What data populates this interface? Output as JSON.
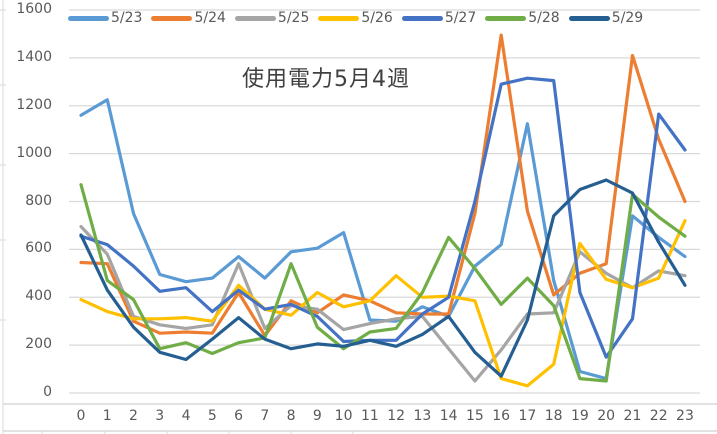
{
  "chart_data": {
    "type": "line",
    "title": "使用電力5月4週",
    "xlabel": "",
    "ylabel": "",
    "ylim": [
      0,
      1600
    ],
    "yticks": [
      0,
      200,
      400,
      600,
      800,
      1000,
      1200,
      1400,
      1600
    ],
    "grid": true,
    "legend_position": "top",
    "x": [
      0,
      1,
      2,
      3,
      4,
      5,
      6,
      7,
      8,
      9,
      10,
      11,
      12,
      13,
      14,
      15,
      16,
      17,
      18,
      19,
      20,
      21,
      22,
      23
    ],
    "series": [
      {
        "name": "5/23",
        "color": "#5B9BD5",
        "values": [
          1160,
          1225,
          750,
          495,
          465,
          480,
          570,
          480,
          590,
          605,
          670,
          305,
          300,
          360,
          320,
          530,
          620,
          1125,
          470,
          90,
          60,
          740,
          650,
          570
        ]
      },
      {
        "name": "5/24",
        "color": "#ED7D31",
        "values": [
          545,
          540,
          300,
          250,
          255,
          250,
          420,
          240,
          385,
          335,
          410,
          385,
          335,
          330,
          330,
          750,
          1495,
          760,
          410,
          500,
          540,
          1410,
          1060,
          800
        ]
      },
      {
        "name": "5/25",
        "color": "#A5A5A5",
        "values": [
          695,
          580,
          320,
          285,
          270,
          285,
          540,
          270,
          365,
          350,
          265,
          290,
          310,
          320,
          185,
          50,
          180,
          330,
          335,
          590,
          500,
          440,
          510,
          490
        ]
      },
      {
        "name": "5/26",
        "color": "#FFC000",
        "values": [
          390,
          340,
          310,
          310,
          315,
          300,
          450,
          350,
          325,
          420,
          360,
          385,
          490,
          400,
          405,
          385,
          60,
          30,
          120,
          625,
          475,
          440,
          480,
          720
        ]
      },
      {
        "name": "5/27",
        "color": "#4472C4",
        "values": [
          655,
          620,
          530,
          425,
          440,
          340,
          430,
          350,
          370,
          320,
          215,
          220,
          220,
          330,
          400,
          800,
          1290,
          1315,
          1305,
          420,
          150,
          310,
          1165,
          1015
        ]
      },
      {
        "name": "5/28",
        "color": "#70AD47",
        "values": [
          870,
          470,
          390,
          185,
          210,
          165,
          210,
          230,
          540,
          275,
          185,
          255,
          270,
          420,
          650,
          520,
          370,
          480,
          365,
          60,
          50,
          830,
          735,
          655
        ]
      },
      {
        "name": "5/29",
        "color": "#255E91",
        "values": [
          660,
          430,
          275,
          170,
          140,
          225,
          315,
          225,
          185,
          205,
          195,
          220,
          195,
          245,
          320,
          170,
          70,
          305,
          740,
          850,
          890,
          835,
          630,
          450
        ]
      }
    ]
  }
}
